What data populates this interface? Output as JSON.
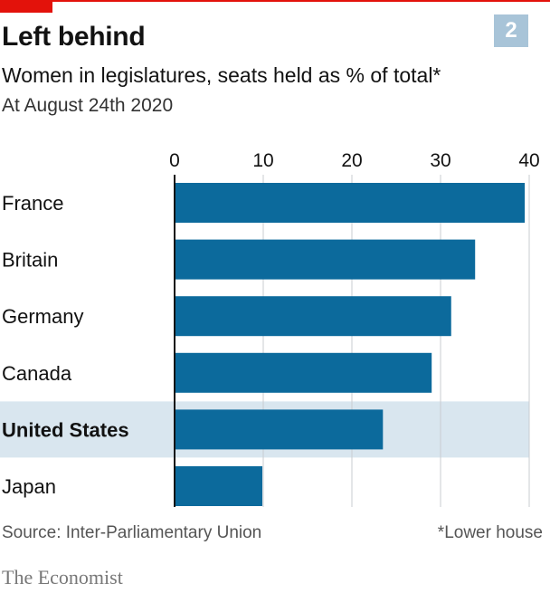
{
  "chart_number": "2",
  "colors": {
    "bar": "#0c6a9c",
    "highlight_band": "#d9e6ef",
    "accent": "#e3120b",
    "grid": "#c9ccd0",
    "axis": "#121212"
  },
  "chart_data": {
    "type": "bar",
    "orientation": "horizontal",
    "title": "Left behind",
    "subtitle": "Women in legislatures, seats held as % of total*",
    "note": "At August 24th 2020",
    "categories": [
      "France",
      "Britain",
      "Germany",
      "Canada",
      "United States",
      "Japan"
    ],
    "values": [
      39.5,
      33.9,
      31.2,
      29.0,
      23.5,
      9.9
    ],
    "highlight": "United States",
    "xlim": [
      0,
      40
    ],
    "xticks": [
      0,
      10,
      20,
      30,
      40
    ],
    "tick_labels": [
      "0",
      "10",
      "20",
      "30",
      "40"
    ],
    "grid": true,
    "source": "Source: Inter-Parliamentary Union",
    "footnote": "*Lower house"
  },
  "brand": "The Economist"
}
